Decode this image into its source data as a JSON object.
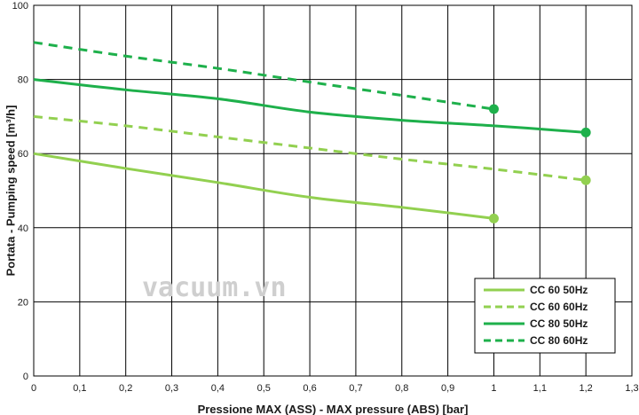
{
  "chart_data": {
    "type": "line",
    "xlabel": "Pressione MAX  (ASS) - MAX pressure (ABS) [bar]",
    "ylabel": "Portata - Pumping speed [m³/h]",
    "xlim": [
      0,
      1.3
    ],
    "ylim": [
      0,
      100
    ],
    "x_ticks": [
      "0",
      "0,1",
      "0,2",
      "0,3",
      "0,4",
      "0,5",
      "0,6",
      "0,7",
      "0,8",
      "0,9",
      "1",
      "1,1",
      "1,2",
      "1,3"
    ],
    "y_ticks": [
      "0",
      "20",
      "40",
      "60",
      "80",
      "100"
    ],
    "grid": true,
    "legend_position": "bottom-right",
    "watermark": "vacuum.vn",
    "series": [
      {
        "name": "CC 60 50Hz",
        "color": "#92d050",
        "dash": "solid",
        "x": [
          0,
          0.2,
          0.4,
          0.6,
          0.8,
          1.0
        ],
        "y": [
          60,
          56,
          52.2,
          48.2,
          45.5,
          42.5
        ],
        "end_marker": true
      },
      {
        "name": "CC 60 60Hz",
        "color": "#92d050",
        "dash": "dashed",
        "x": [
          0,
          0.2,
          0.4,
          0.6,
          0.8,
          1.0,
          1.2
        ],
        "y": [
          70,
          67.5,
          64.5,
          61.5,
          58.5,
          55.8,
          52.8
        ],
        "end_marker": true
      },
      {
        "name": "CC 80 50Hz",
        "color": "#1eb04b",
        "dash": "solid",
        "x": [
          0,
          0.2,
          0.4,
          0.6,
          0.8,
          1.0,
          1.2
        ],
        "y": [
          80,
          77.2,
          74.8,
          71.2,
          69,
          67.5,
          65.7
        ],
        "end_marker": true
      },
      {
        "name": "CC 80 60Hz",
        "color": "#1eb04b",
        "dash": "dashed",
        "x": [
          0,
          0.2,
          0.4,
          0.6,
          0.8,
          1.0
        ],
        "y": [
          90,
          86.3,
          83,
          79.3,
          75.7,
          72
        ],
        "end_marker": true
      }
    ]
  }
}
